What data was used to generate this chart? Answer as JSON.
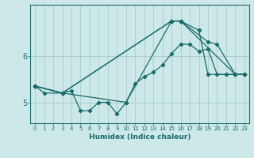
{
  "xlabel": "Humidex (Indice chaleur)",
  "bg_color": "#cce8e8",
  "grid_color": "#aacccc",
  "line_color": "#1a6b6b",
  "xlim": [
    -0.5,
    23.5
  ],
  "ylim": [
    4.55,
    7.1
  ],
  "yticks": [
    5,
    6
  ],
  "xticks": [
    0,
    1,
    2,
    3,
    4,
    5,
    6,
    7,
    8,
    9,
    10,
    11,
    12,
    13,
    14,
    15,
    16,
    17,
    18,
    19,
    20,
    21,
    22,
    23
  ],
  "series": [
    {
      "x": [
        0,
        1,
        3,
        4,
        5,
        6,
        7,
        8,
        9,
        10,
        11,
        12,
        13,
        14,
        15,
        16,
        17,
        18,
        19,
        20,
        21,
        22,
        23
      ],
      "y": [
        5.35,
        5.2,
        5.2,
        5.25,
        4.82,
        4.82,
        5.0,
        5.0,
        4.75,
        5.0,
        5.4,
        5.55,
        5.65,
        5.8,
        6.05,
        6.25,
        6.25,
        6.1,
        6.15,
        5.6,
        5.6,
        5.6,
        5.6
      ]
    },
    {
      "x": [
        0,
        3,
        10,
        15,
        16,
        22,
        23
      ],
      "y": [
        5.35,
        5.2,
        5.0,
        6.75,
        6.75,
        5.6,
        5.6
      ]
    },
    {
      "x": [
        0,
        3,
        15,
        16,
        18,
        19,
        22,
        23
      ],
      "y": [
        5.35,
        5.2,
        6.75,
        6.75,
        6.55,
        5.6,
        5.6,
        5.6
      ]
    },
    {
      "x": [
        0,
        3,
        15,
        16,
        19,
        20,
        22,
        23
      ],
      "y": [
        5.35,
        5.2,
        6.75,
        6.75,
        6.3,
        6.25,
        5.6,
        5.6
      ]
    }
  ]
}
